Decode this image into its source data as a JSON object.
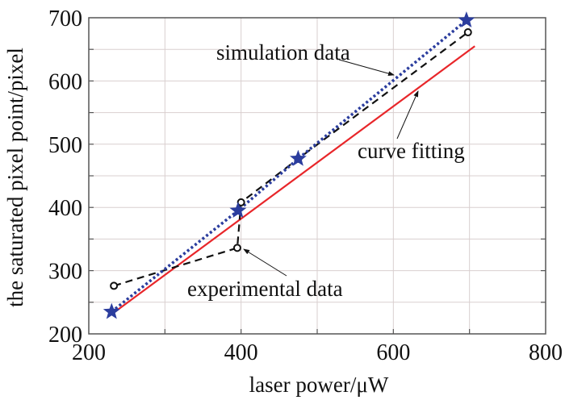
{
  "chart_data": {
    "type": "line",
    "title": "",
    "xlabel": "laser power/μW",
    "ylabel": "the saturated pixel point/pixel",
    "xlim": [
      200,
      800
    ],
    "ylim": [
      200,
      700
    ],
    "xticks": [
      200,
      400,
      600,
      800
    ],
    "yticks": [
      200,
      300,
      400,
      500,
      600,
      700
    ],
    "x_grid_step": 100,
    "y_grid_step": 50,
    "grid": true,
    "series": [
      {
        "name": "simulation data",
        "style": "blue dotted with star markers",
        "color": "#2b3d9e",
        "points": [
          [
            230,
            235
          ],
          [
            396,
            395
          ],
          [
            475,
            477
          ],
          [
            696,
            696
          ]
        ]
      },
      {
        "name": "experimental data",
        "style": "black dashed with circle markers",
        "color": "#111111",
        "points": [
          [
            233,
            276
          ],
          [
            395,
            336
          ],
          [
            400,
            408
          ],
          [
            475,
            477
          ],
          [
            698,
            677
          ]
        ]
      },
      {
        "name": "curve fitting",
        "style": "red solid",
        "color": "#e8262a",
        "points": [
          [
            230,
            231
          ],
          [
            707,
            655
          ]
        ]
      }
    ],
    "annotations": [
      {
        "text": "simulation data",
        "target": [
          507,
          540
        ]
      },
      {
        "text": "curve fitting",
        "target": [
          640,
          570
        ]
      },
      {
        "text": "experimental data",
        "target": [
          398,
          336
        ]
      }
    ]
  }
}
